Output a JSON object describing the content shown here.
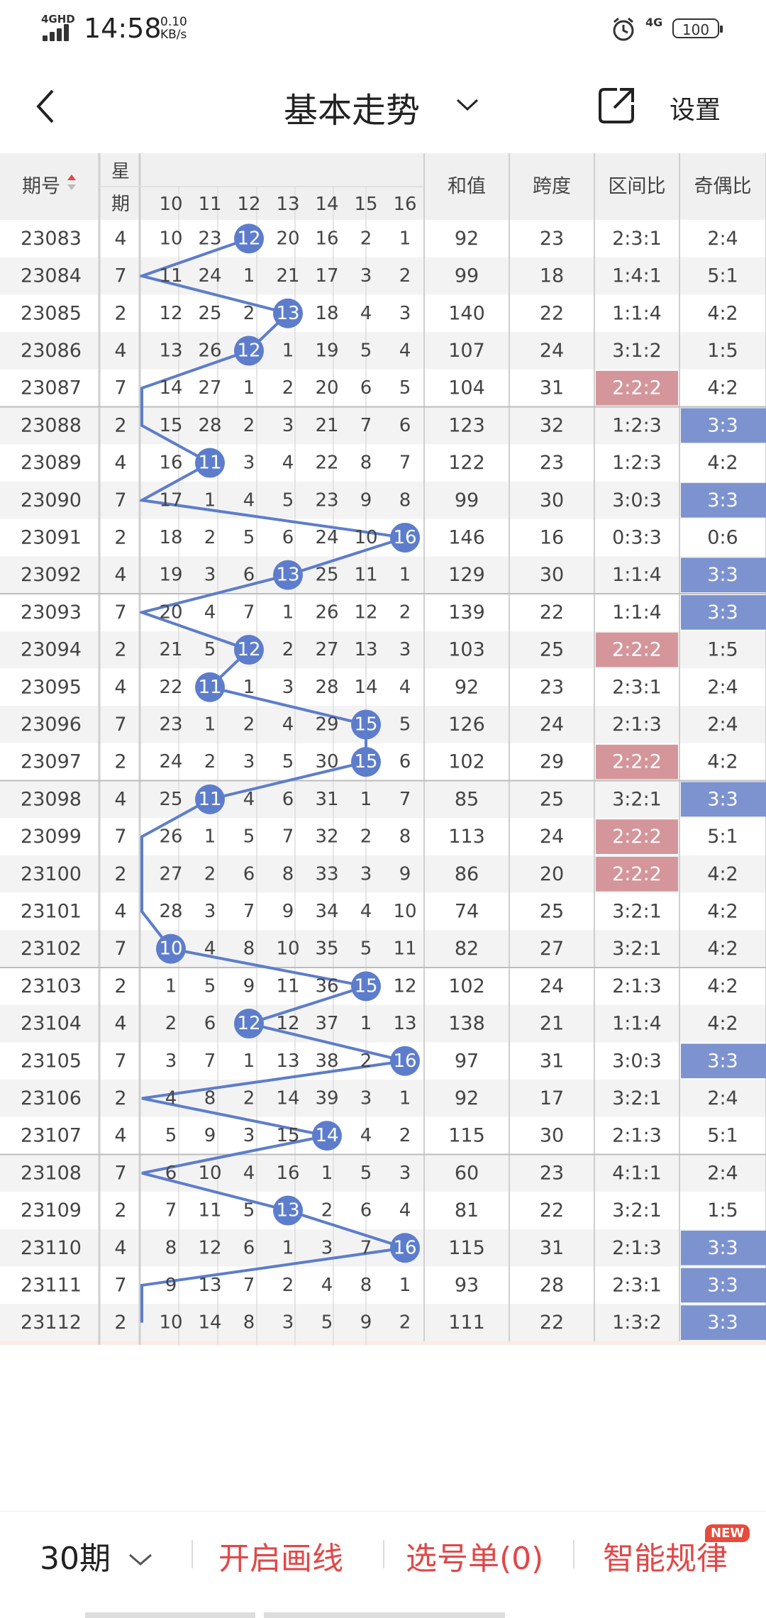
{
  "status": {
    "network": "4GHD",
    "time": "14:58",
    "speed_value": "0.10",
    "speed_unit": "KB/s",
    "net2": "4G",
    "battery": "100"
  },
  "header": {
    "title": "基本走势",
    "settings_label": "设置"
  },
  "table": {
    "col_issue": "期号",
    "col_week_1": "星",
    "col_week_2": "期",
    "numbers": [
      "10",
      "11",
      "12",
      "13",
      "14",
      "15",
      "16"
    ],
    "col_sum": "和值",
    "col_span": "跨度",
    "col_zone": "区间比",
    "col_parity": "奇偶比",
    "rows": [
      {
        "issue": "23083",
        "wk": "4",
        "n": [
          "10",
          "23",
          "12",
          "20",
          "16",
          "2",
          "1"
        ],
        "hit": 2,
        "sum": "92",
        "span": "23",
        "zone": "2:3:1",
        "par": "2:4",
        "zh": false,
        "ph": false
      },
      {
        "issue": "23084",
        "wk": "7",
        "n": [
          "11",
          "24",
          "1",
          "21",
          "17",
          "3",
          "2"
        ],
        "hit": -1,
        "sum": "99",
        "span": "18",
        "zone": "1:4:1",
        "par": "5:1",
        "zh": false,
        "ph": false
      },
      {
        "issue": "23085",
        "wk": "2",
        "n": [
          "12",
          "25",
          "2",
          "13",
          "18",
          "4",
          "3"
        ],
        "hit": 3,
        "sum": "140",
        "span": "22",
        "zone": "1:1:4",
        "par": "4:2",
        "zh": false,
        "ph": false
      },
      {
        "issue": "23086",
        "wk": "4",
        "n": [
          "13",
          "26",
          "12",
          "1",
          "19",
          "5",
          "4"
        ],
        "hit": 2,
        "sum": "107",
        "span": "24",
        "zone": "3:1:2",
        "par": "1:5",
        "zh": false,
        "ph": false
      },
      {
        "issue": "23087",
        "wk": "7",
        "n": [
          "14",
          "27",
          "1",
          "2",
          "20",
          "6",
          "5"
        ],
        "hit": -1,
        "sum": "104",
        "span": "31",
        "zone": "2:2:2",
        "par": "4:2",
        "zh": true,
        "ph": false
      },
      {
        "issue": "23088",
        "wk": "2",
        "n": [
          "15",
          "28",
          "2",
          "3",
          "21",
          "7",
          "6"
        ],
        "hit": -1,
        "sum": "123",
        "span": "32",
        "zone": "1:2:3",
        "par": "3:3",
        "zh": false,
        "ph": true
      },
      {
        "issue": "23089",
        "wk": "4",
        "n": [
          "16",
          "11",
          "3",
          "4",
          "22",
          "8",
          "7"
        ],
        "hit": 1,
        "sum": "122",
        "span": "23",
        "zone": "1:2:3",
        "par": "4:2",
        "zh": false,
        "ph": false
      },
      {
        "issue": "23090",
        "wk": "7",
        "n": [
          "17",
          "1",
          "4",
          "5",
          "23",
          "9",
          "8"
        ],
        "hit": -1,
        "sum": "99",
        "span": "30",
        "zone": "3:0:3",
        "par": "3:3",
        "zh": false,
        "ph": true
      },
      {
        "issue": "23091",
        "wk": "2",
        "n": [
          "18",
          "2",
          "5",
          "6",
          "24",
          "10",
          "16"
        ],
        "hit": 6,
        "sum": "146",
        "span": "16",
        "zone": "0:3:3",
        "par": "0:6",
        "zh": false,
        "ph": false
      },
      {
        "issue": "23092",
        "wk": "4",
        "n": [
          "19",
          "3",
          "6",
          "13",
          "25",
          "11",
          "1"
        ],
        "hit": 3,
        "sum": "129",
        "span": "30",
        "zone": "1:1:4",
        "par": "3:3",
        "zh": false,
        "ph": true
      },
      {
        "issue": "23093",
        "wk": "7",
        "n": [
          "20",
          "4",
          "7",
          "1",
          "26",
          "12",
          "2"
        ],
        "hit": -1,
        "sum": "139",
        "span": "22",
        "zone": "1:1:4",
        "par": "3:3",
        "zh": false,
        "ph": true
      },
      {
        "issue": "23094",
        "wk": "2",
        "n": [
          "21",
          "5",
          "12",
          "2",
          "27",
          "13",
          "3"
        ],
        "hit": 2,
        "sum": "103",
        "span": "25",
        "zone": "2:2:2",
        "par": "1:5",
        "zh": true,
        "ph": false
      },
      {
        "issue": "23095",
        "wk": "4",
        "n": [
          "22",
          "11",
          "1",
          "3",
          "28",
          "14",
          "4"
        ],
        "hit": 1,
        "sum": "92",
        "span": "23",
        "zone": "2:3:1",
        "par": "2:4",
        "zh": false,
        "ph": false
      },
      {
        "issue": "23096",
        "wk": "7",
        "n": [
          "23",
          "1",
          "2",
          "4",
          "29",
          "15",
          "5"
        ],
        "hit": 5,
        "sum": "126",
        "span": "24",
        "zone": "2:1:3",
        "par": "2:4",
        "zh": false,
        "ph": false
      },
      {
        "issue": "23097",
        "wk": "2",
        "n": [
          "24",
          "2",
          "3",
          "5",
          "30",
          "15",
          "6"
        ],
        "hit": 5,
        "sum": "102",
        "span": "29",
        "zone": "2:2:2",
        "par": "4:2",
        "zh": true,
        "ph": false
      },
      {
        "issue": "23098",
        "wk": "4",
        "n": [
          "25",
          "11",
          "4",
          "6",
          "31",
          "1",
          "7"
        ],
        "hit": 1,
        "sum": "85",
        "span": "25",
        "zone": "3:2:1",
        "par": "3:3",
        "zh": false,
        "ph": true
      },
      {
        "issue": "23099",
        "wk": "7",
        "n": [
          "26",
          "1",
          "5",
          "7",
          "32",
          "2",
          "8"
        ],
        "hit": -1,
        "sum": "113",
        "span": "24",
        "zone": "2:2:2",
        "par": "5:1",
        "zh": true,
        "ph": false
      },
      {
        "issue": "23100",
        "wk": "2",
        "n": [
          "27",
          "2",
          "6",
          "8",
          "33",
          "3",
          "9"
        ],
        "hit": -1,
        "sum": "86",
        "span": "20",
        "zone": "2:2:2",
        "par": "4:2",
        "zh": true,
        "ph": false
      },
      {
        "issue": "23101",
        "wk": "4",
        "n": [
          "28",
          "3",
          "7",
          "9",
          "34",
          "4",
          "10"
        ],
        "hit": -1,
        "sum": "74",
        "span": "25",
        "zone": "3:2:1",
        "par": "4:2",
        "zh": false,
        "ph": false
      },
      {
        "issue": "23102",
        "wk": "7",
        "n": [
          "10",
          "4",
          "8",
          "10",
          "35",
          "5",
          "11"
        ],
        "hit": 0,
        "sum": "82",
        "span": "27",
        "zone": "3:2:1",
        "par": "4:2",
        "zh": false,
        "ph": false
      },
      {
        "issue": "23103",
        "wk": "2",
        "n": [
          "1",
          "5",
          "9",
          "11",
          "36",
          "15",
          "12"
        ],
        "hit": 5,
        "sum": "102",
        "span": "24",
        "zone": "2:1:3",
        "par": "4:2",
        "zh": false,
        "ph": false
      },
      {
        "issue": "23104",
        "wk": "4",
        "n": [
          "2",
          "6",
          "12",
          "12",
          "37",
          "1",
          "13"
        ],
        "hit": 2,
        "sum": "138",
        "span": "21",
        "zone": "1:1:4",
        "par": "4:2",
        "zh": false,
        "ph": false
      },
      {
        "issue": "23105",
        "wk": "7",
        "n": [
          "3",
          "7",
          "1",
          "13",
          "38",
          "2",
          "16"
        ],
        "hit": 6,
        "sum": "97",
        "span": "31",
        "zone": "3:0:3",
        "par": "3:3",
        "zh": false,
        "ph": true
      },
      {
        "issue": "23106",
        "wk": "2",
        "n": [
          "4",
          "8",
          "2",
          "14",
          "39",
          "3",
          "1"
        ],
        "hit": -1,
        "sum": "92",
        "span": "17",
        "zone": "3:2:1",
        "par": "2:4",
        "zh": false,
        "ph": false
      },
      {
        "issue": "23107",
        "wk": "4",
        "n": [
          "5",
          "9",
          "3",
          "15",
          "14",
          "4",
          "2"
        ],
        "hit": 4,
        "sum": "115",
        "span": "30",
        "zone": "2:1:3",
        "par": "5:1",
        "zh": false,
        "ph": false
      },
      {
        "issue": "23108",
        "wk": "7",
        "n": [
          "6",
          "10",
          "4",
          "16",
          "1",
          "5",
          "3"
        ],
        "hit": -1,
        "sum": "60",
        "span": "23",
        "zone": "4:1:1",
        "par": "2:4",
        "zh": false,
        "ph": false
      },
      {
        "issue": "23109",
        "wk": "2",
        "n": [
          "7",
          "11",
          "5",
          "13",
          "2",
          "6",
          "4"
        ],
        "hit": 3,
        "sum": "81",
        "span": "22",
        "zone": "3:2:1",
        "par": "1:5",
        "zh": false,
        "ph": false
      },
      {
        "issue": "23110",
        "wk": "4",
        "n": [
          "8",
          "12",
          "6",
          "1",
          "3",
          "7",
          "16"
        ],
        "hit": 6,
        "sum": "115",
        "span": "31",
        "zone": "2:1:3",
        "par": "3:3",
        "zh": false,
        "ph": true
      },
      {
        "issue": "23111",
        "wk": "7",
        "n": [
          "9",
          "13",
          "7",
          "2",
          "4",
          "8",
          "1"
        ],
        "hit": -1,
        "sum": "93",
        "span": "28",
        "zone": "2:3:1",
        "par": "3:3",
        "zh": false,
        "ph": true
      },
      {
        "issue": "23112",
        "wk": "2",
        "n": [
          "10",
          "14",
          "8",
          "3",
          "5",
          "9",
          "2"
        ],
        "hit": -1,
        "sum": "111",
        "span": "22",
        "zone": "1:3:2",
        "par": "3:3",
        "zh": false,
        "ph": true
      }
    ],
    "select_label": "选号",
    "footer_dash": "-"
  },
  "bottom": {
    "period": "30期",
    "draw": "开启画线",
    "list": "选号单(0)",
    "rules": "智能规律",
    "new_badge": "NEW"
  },
  "colors": {
    "ball": "#5d7dcc",
    "zone_hl": "#d4969a",
    "parity_hl": "#7d93d0",
    "red": "#e04848",
    "pink_bg": "#fdebe4"
  }
}
